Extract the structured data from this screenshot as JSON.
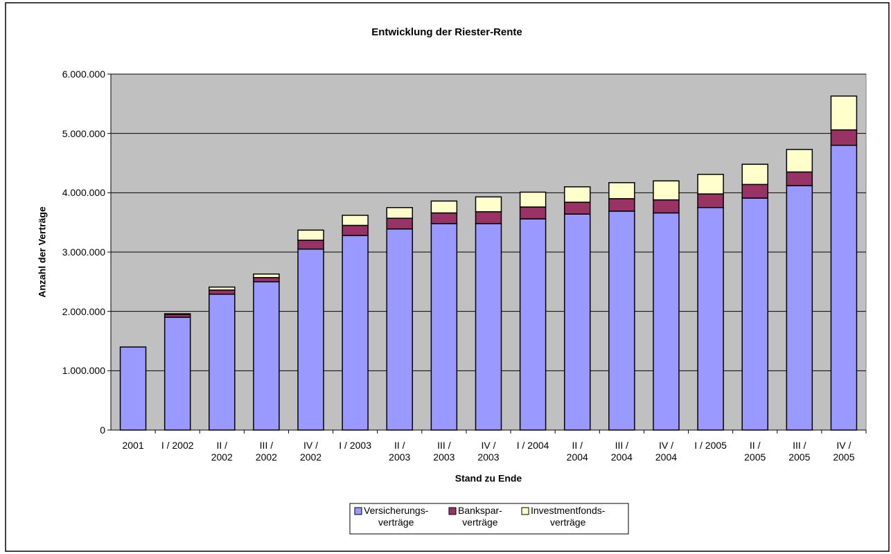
{
  "chart_data": {
    "type": "stacked_bar",
    "title": "Entwicklung der Riester-Rente",
    "y_label": "Anzahl der Verträge",
    "x_label": "Stand zu Ende",
    "categories": [
      "2001",
      "I / 2002",
      "II /\n2002",
      "III /\n2002",
      "IV /\n2002",
      "I / 2003",
      "II /\n2003",
      "III /\n2003",
      "IV /\n2003",
      "I / 2004",
      "II /\n2004",
      "III /\n2004",
      "IV /\n2004",
      "I / 2005",
      "II /\n2005",
      "III /\n2005",
      "IV /\n2005"
    ],
    "series": [
      {
        "name": "Versicherungs-\nverträge",
        "color": "#9999ff",
        "values": [
          1400000,
          1900000,
          2290000,
          2500000,
          3050000,
          3280000,
          3390000,
          3480000,
          3480000,
          3560000,
          3640000,
          3690000,
          3660000,
          3750000,
          3910000,
          4120000,
          4800000
        ]
      },
      {
        "name": "Bankspar-\nverträge",
        "color": "#993366",
        "values": [
          0,
          50000,
          70000,
          70000,
          150000,
          170000,
          180000,
          180000,
          200000,
          200000,
          200000,
          210000,
          220000,
          230000,
          230000,
          230000,
          260000
        ]
      },
      {
        "name": "Investmentfonds-\nverträge",
        "color": "#ffffcc",
        "values": [
          0,
          10000,
          50000,
          60000,
          170000,
          170000,
          180000,
          200000,
          250000,
          250000,
          260000,
          270000,
          320000,
          330000,
          340000,
          380000,
          570000
        ]
      }
    ],
    "ylim": [
      0,
      6000000
    ],
    "yticks": [
      0,
      {
        "value": 1000000,
        "label": "1.000.000"
      },
      {
        "value": 2000000,
        "label": "2.000.000"
      },
      {
        "value": 3000000,
        "label": "3.000.000"
      },
      {
        "value": 4000000,
        "label": "4.000.000"
      },
      {
        "value": 5000000,
        "label": "5.000.000"
      },
      {
        "value": 6000000,
        "label": "6.000.000"
      }
    ],
    "grid": true,
    "legend": "bottom"
  }
}
